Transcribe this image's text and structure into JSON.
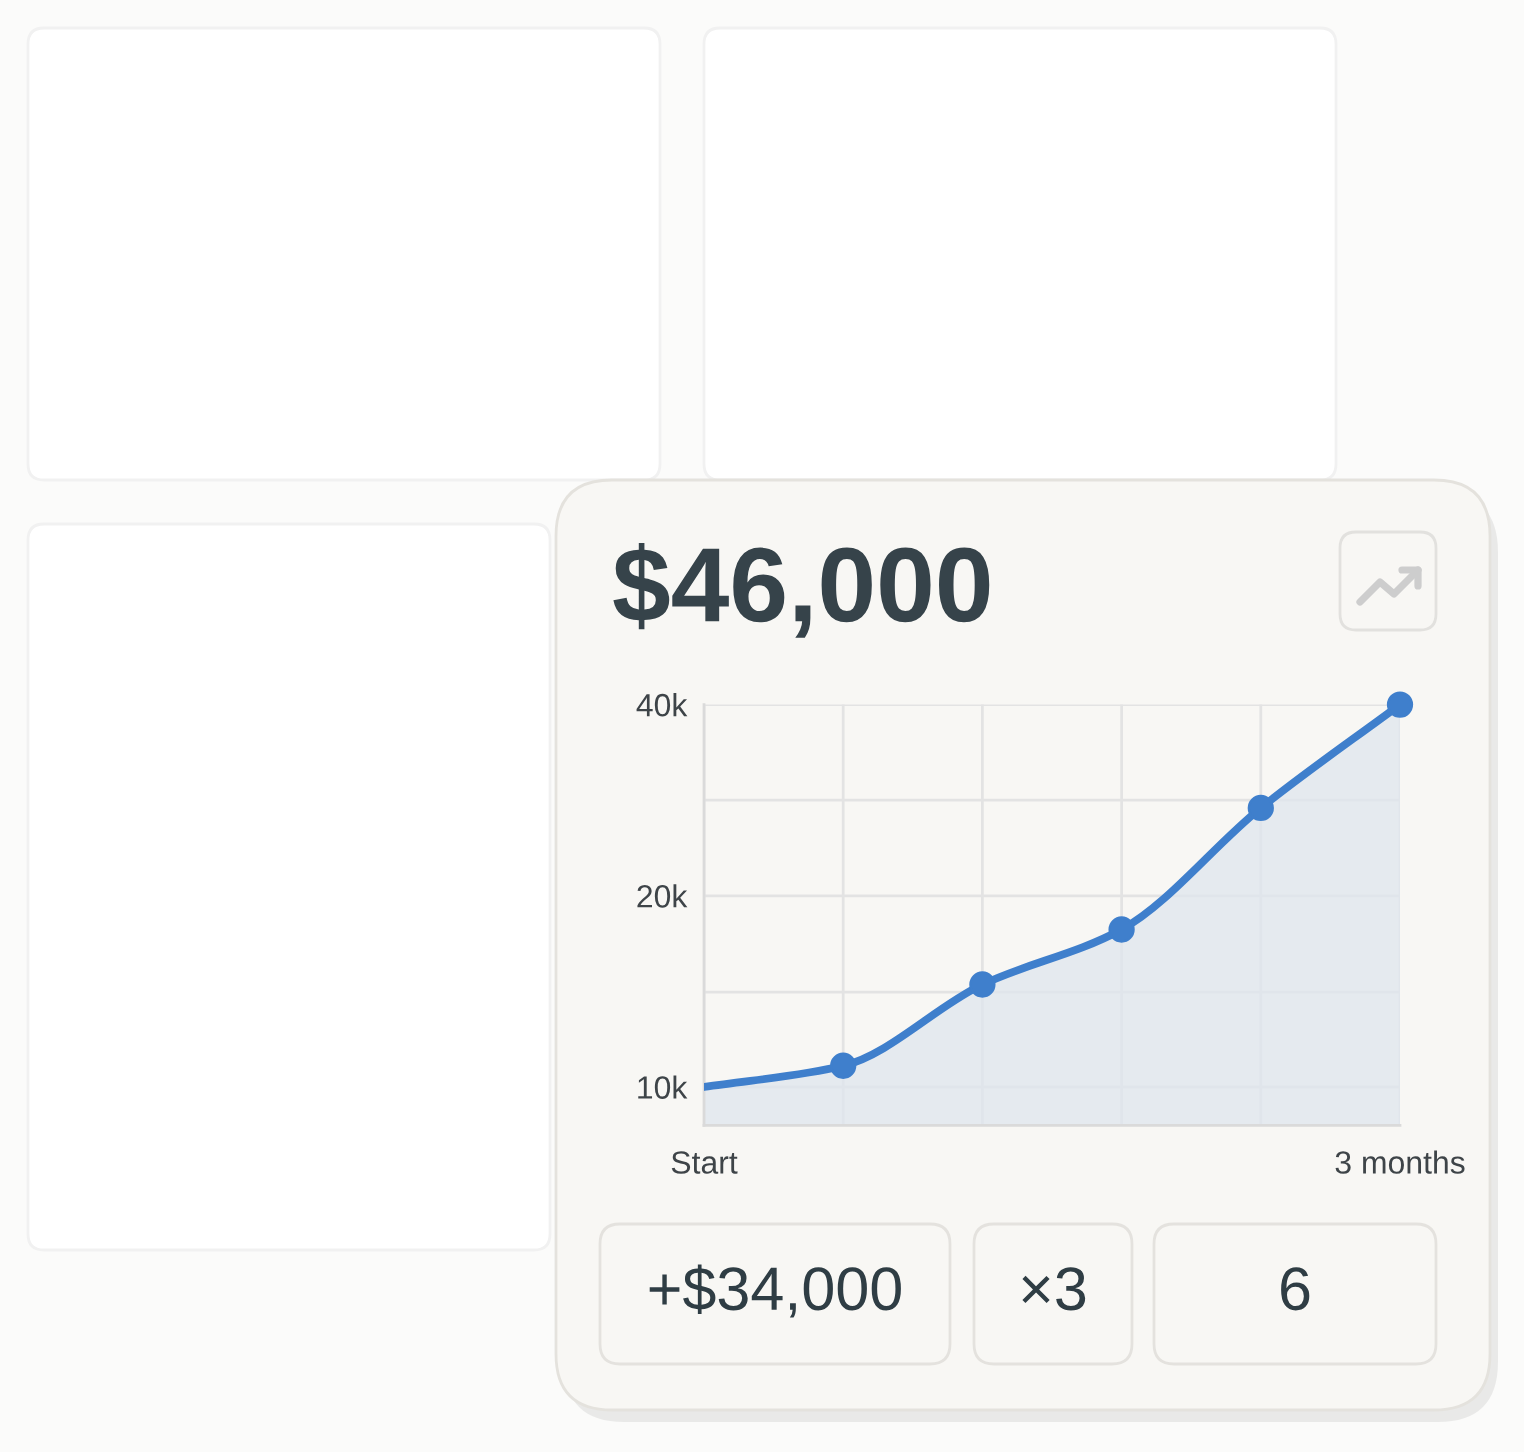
{
  "chart_data": {
    "type": "area",
    "title": "$46,000",
    "categories": [
      "Start",
      null,
      null,
      null,
      null,
      "3 months"
    ],
    "series": [
      {
        "color": "#3f7fcc",
        "marker": "none",
        "line_style": "solid",
        "values": [
          10000,
          10800,
          14500,
          17700,
          27500,
          40000
        ]
      },
      {
        "type": "scatter",
        "color": "#3f7fcc",
        "marker": "circle",
        "values": [
          null,
          10800,
          14500,
          17700,
          27500,
          40000
        ]
      }
    ],
    "ylim": [
      8700,
      40000
    ],
    "yticks": [
      {
        "value": 10000,
        "label": "10k"
      },
      {
        "value": 14100,
        "label": null
      },
      {
        "value": 20000,
        "label": "20k"
      },
      {
        "value": 28300,
        "label": null
      },
      {
        "value": 40000,
        "label": "40k"
      }
    ],
    "log": "y",
    "grid": true,
    "annotations": [
      "+$34,000",
      "×3",
      "6"
    ]
  }
}
